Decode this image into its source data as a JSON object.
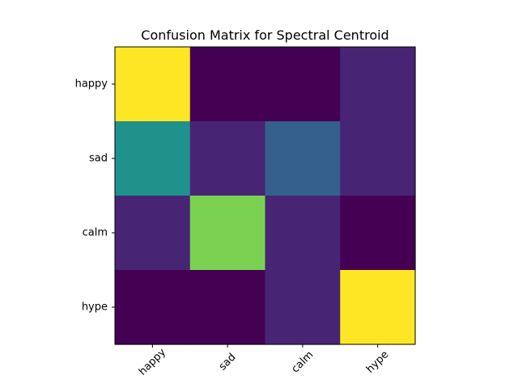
{
  "chart_data": {
    "type": "heatmap",
    "title": "Confusion Matrix for Spectral Centroid",
    "x_categories": [
      "happy",
      "sad",
      "calm",
      "hype"
    ],
    "y_categories": [
      "happy",
      "sad",
      "calm",
      "hype"
    ],
    "values": [
      [
        10,
        0,
        0,
        1
      ],
      [
        5,
        1,
        3,
        1
      ],
      [
        1,
        8,
        1,
        0
      ],
      [
        0,
        0,
        1,
        10
      ]
    ],
    "color_range": [
      0,
      10
    ],
    "colormap": "viridis",
    "grid": false,
    "legend": "none",
    "x_tick_rotation_deg": 45
  }
}
